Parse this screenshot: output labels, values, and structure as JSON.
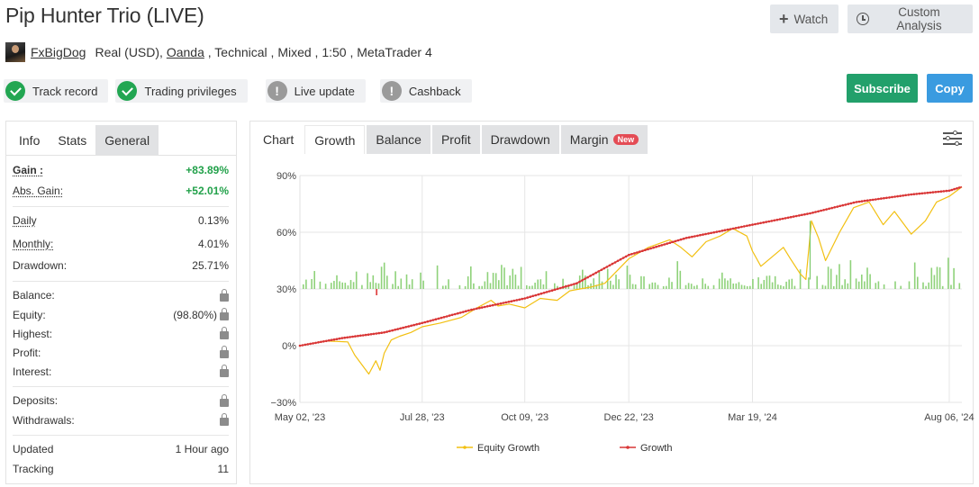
{
  "header": {
    "title": "Pip Hunter Trio (LIVE)",
    "watch_label": "Watch",
    "custom_analysis_label": "Custom Analysis"
  },
  "meta": {
    "author": "FxBigDog",
    "account": "Real (USD), ",
    "broker": "Oanda",
    "details": " , Technical , Mixed , 1:50 , MetaTrader 4"
  },
  "badges": [
    {
      "label": "Track record",
      "icon": "check-icon"
    },
    {
      "label": "Trading privileges",
      "icon": "check-icon"
    },
    {
      "label": "Live update",
      "icon": "exclamation-icon"
    },
    {
      "label": "Cashback",
      "icon": "exclamation-icon"
    }
  ],
  "actions": {
    "subscribe_label": "Subscribe",
    "copy_label": "Copy"
  },
  "left_tabs": [
    "Info",
    "Stats",
    "General"
  ],
  "stats": {
    "gain_label": "Gain :",
    "gain_value": "+83.89%",
    "abs_gain_label": "Abs. Gain:",
    "abs_gain_value": "+52.01%",
    "daily_label": "Daily",
    "daily_value": "0.13%",
    "monthly_label": "Monthly:",
    "monthly_value": "4.01%",
    "drawdown_label": "Drawdown:",
    "drawdown_value": "25.71%",
    "balance_label": "Balance:",
    "equity_label": "Equity:",
    "equity_value": "(98.80%)",
    "highest_label": "Highest:",
    "profit_label": "Profit:",
    "interest_label": "Interest:",
    "deposits_label": "Deposits:",
    "withdrawals_label": "Withdrawals:",
    "updated_label": "Updated",
    "updated_value": "1 Hour ago",
    "tracking_label": "Tracking",
    "tracking_value": "11"
  },
  "chart_tabs": {
    "chart": "Chart",
    "growth": "Growth",
    "balance": "Balance",
    "profit": "Profit",
    "drawdown": "Drawdown",
    "margin": "Margin",
    "new_badge": "New"
  },
  "chart_data": {
    "type": "line",
    "y_ticks": [
      "90%",
      "60%",
      "30%",
      "0%",
      "−30%"
    ],
    "ylim": [
      -30,
      90
    ],
    "x_ticks": [
      "May 02, '23",
      "Jul 28, '23",
      "Oct 09, '23",
      "Dec 22, '23",
      "Mar 19, '24",
      "Aug 06, '24"
    ],
    "x_range": [
      "2023-05-02",
      "2024-08-15"
    ],
    "grid": true,
    "legend_position": "bottom",
    "series": [
      {
        "name": "Equity Growth",
        "color": "#f2c012",
        "points": [
          [
            "2023-05-02",
            0
          ],
          [
            "2023-05-20",
            2.5
          ],
          [
            "2023-06-05",
            2
          ],
          [
            "2023-06-10",
            -5
          ],
          [
            "2023-06-15",
            -10
          ],
          [
            "2023-06-20",
            -15
          ],
          [
            "2023-06-25",
            -8
          ],
          [
            "2023-06-28",
            -13
          ],
          [
            "2023-07-01",
            -4
          ],
          [
            "2023-07-06",
            3
          ],
          [
            "2023-07-12",
            5
          ],
          [
            "2023-07-20",
            7
          ],
          [
            "2023-07-28",
            10
          ],
          [
            "2023-08-10",
            12
          ],
          [
            "2023-08-25",
            15
          ],
          [
            "2023-09-05",
            20
          ],
          [
            "2023-09-15",
            24
          ],
          [
            "2023-09-20",
            21
          ],
          [
            "2023-09-28",
            22
          ],
          [
            "2023-10-09",
            20
          ],
          [
            "2023-10-20",
            25
          ],
          [
            "2023-11-01",
            24
          ],
          [
            "2023-11-10",
            29
          ],
          [
            "2023-11-25",
            31
          ],
          [
            "2023-12-05",
            33
          ],
          [
            "2023-12-22",
            46
          ],
          [
            "2024-01-05",
            52
          ],
          [
            "2024-01-20",
            56
          ],
          [
            "2024-01-28",
            52
          ],
          [
            "2024-02-05",
            47
          ],
          [
            "2024-02-15",
            55
          ],
          [
            "2024-02-25",
            58
          ],
          [
            "2024-03-05",
            62
          ],
          [
            "2024-03-15",
            58
          ],
          [
            "2024-03-19",
            50
          ],
          [
            "2024-03-25",
            42
          ],
          [
            "2024-04-02",
            47
          ],
          [
            "2024-04-10",
            52
          ],
          [
            "2024-04-15",
            46
          ],
          [
            "2024-04-22",
            38
          ],
          [
            "2024-04-26",
            35
          ],
          [
            "2024-04-30",
            66
          ],
          [
            "2024-05-05",
            57
          ],
          [
            "2024-05-10",
            45
          ],
          [
            "2024-05-20",
            60
          ],
          [
            "2024-05-30",
            73
          ],
          [
            "2024-06-10",
            76
          ],
          [
            "2024-06-20",
            64
          ],
          [
            "2024-06-28",
            71
          ],
          [
            "2024-07-10",
            59
          ],
          [
            "2024-07-20",
            66
          ],
          [
            "2024-07-28",
            76
          ],
          [
            "2024-08-06",
            79
          ],
          [
            "2024-08-15",
            84
          ]
        ]
      },
      {
        "name": "Growth",
        "color": "#d93636",
        "points": [
          [
            "2023-05-02",
            0
          ],
          [
            "2023-06-01",
            4
          ],
          [
            "2023-07-01",
            7
          ],
          [
            "2023-07-28",
            12
          ],
          [
            "2023-09-01",
            19
          ],
          [
            "2023-10-09",
            25
          ],
          [
            "2023-11-15",
            33
          ],
          [
            "2023-12-22",
            48
          ],
          [
            "2024-02-01",
            57
          ],
          [
            "2024-03-19",
            64
          ],
          [
            "2024-04-29",
            70
          ],
          [
            "2024-06-01",
            76
          ],
          [
            "2024-07-10",
            80
          ],
          [
            "2024-08-06",
            82
          ],
          [
            "2024-08-15",
            84
          ]
        ]
      }
    ]
  },
  "legend": {
    "equity": "Equity Growth",
    "growth": "Growth"
  }
}
